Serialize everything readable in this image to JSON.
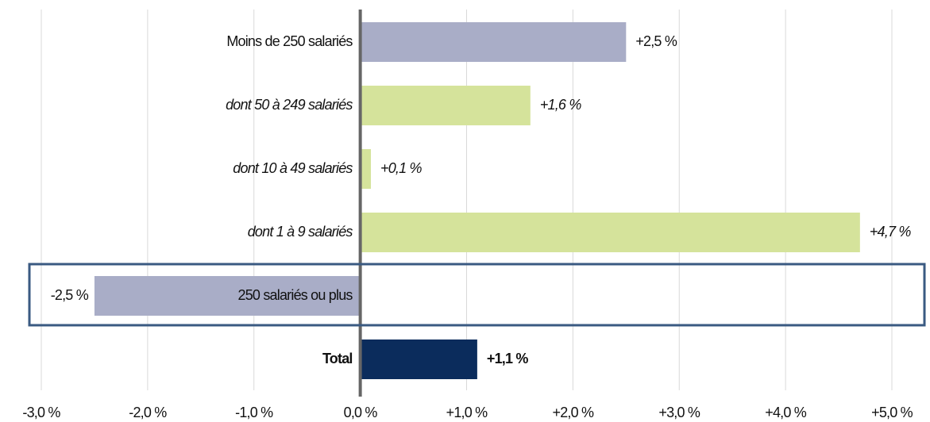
{
  "chart_data": {
    "type": "hbar",
    "categories": [
      "Moins de 250 salariés",
      "dont 50 à 249 salariés",
      "dont 10 à 49 salariés",
      "dont 1 à 9 salariés",
      "250 salariés ou plus",
      "Total"
    ],
    "values": [
      2.5,
      1.6,
      0.1,
      4.7,
      -2.5,
      1.1
    ],
    "value_labels": [
      "+2,5 %",
      "+1,6 %",
      "+0,1 %",
      "+4,7 %",
      "-2,5 %",
      "+1,1 %"
    ],
    "colors": [
      "#a9adc7",
      "#d5e39b",
      "#d5e39b",
      "#d5e39b",
      "#a9adc7",
      "#0b2c5c"
    ],
    "xlim": [
      -3,
      5
    ],
    "xticks": [
      {
        "value": -3,
        "label": "-3,0 %"
      },
      {
        "value": -2,
        "label": "-2,0 %"
      },
      {
        "value": -1,
        "label": "-1,0 %"
      },
      {
        "value": 0,
        "label": "0,0 %"
      },
      {
        "value": 1,
        "label": "+1,0 %"
      },
      {
        "value": 2,
        "label": "+2,0 %"
      },
      {
        "value": 3,
        "label": "+3,0 %"
      },
      {
        "value": 4,
        "label": "+4,0 %"
      },
      {
        "value": 5,
        "label": "+5,0 %"
      }
    ],
    "grid": true
  }
}
